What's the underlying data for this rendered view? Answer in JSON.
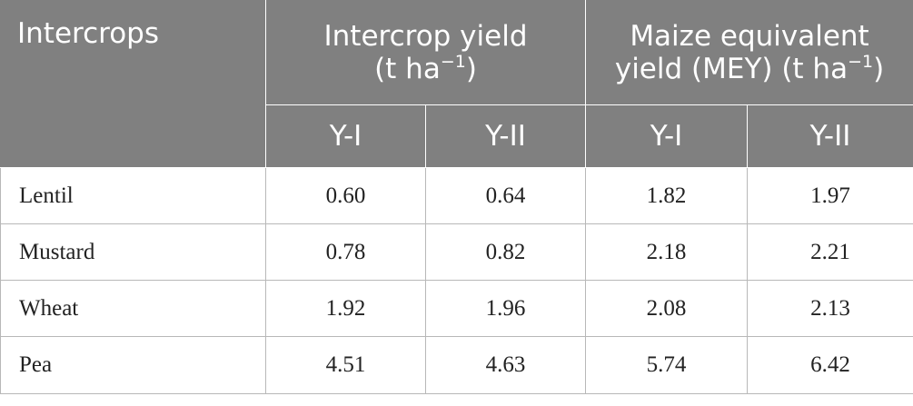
{
  "table": {
    "header": {
      "col_label": "Intercrops",
      "group1": {
        "line1": "Intercrop yield",
        "line2_unit": "(t ha",
        "line2_sup": "−1",
        "line2_close": ")"
      },
      "group2": {
        "line1": "Maize equivalent",
        "line2_unit": "yield (MEY) (t ha",
        "line2_sup": "−1",
        "line2_close": ")"
      },
      "sub": [
        "Y-I",
        "Y-II",
        "Y-I",
        "Y-II"
      ]
    },
    "rows": [
      {
        "crop": "Lentil",
        "iy1": "0.60",
        "iy2": "0.64",
        "mey1": "1.82",
        "mey2": "1.97"
      },
      {
        "crop": "Mustard",
        "iy1": "0.78",
        "iy2": "0.82",
        "mey1": "2.18",
        "mey2": "2.21"
      },
      {
        "crop": "Wheat",
        "iy1": "1.92",
        "iy2": "1.96",
        "mey1": "2.08",
        "mey2": "2.13"
      },
      {
        "crop": "Pea",
        "iy1": "4.51",
        "iy2": "4.63",
        "mey1": "5.74",
        "mey2": "6.42"
      }
    ],
    "colors": {
      "header_bg": "#808080",
      "header_text": "#ffffff",
      "grid": "#b8b8b8"
    }
  }
}
